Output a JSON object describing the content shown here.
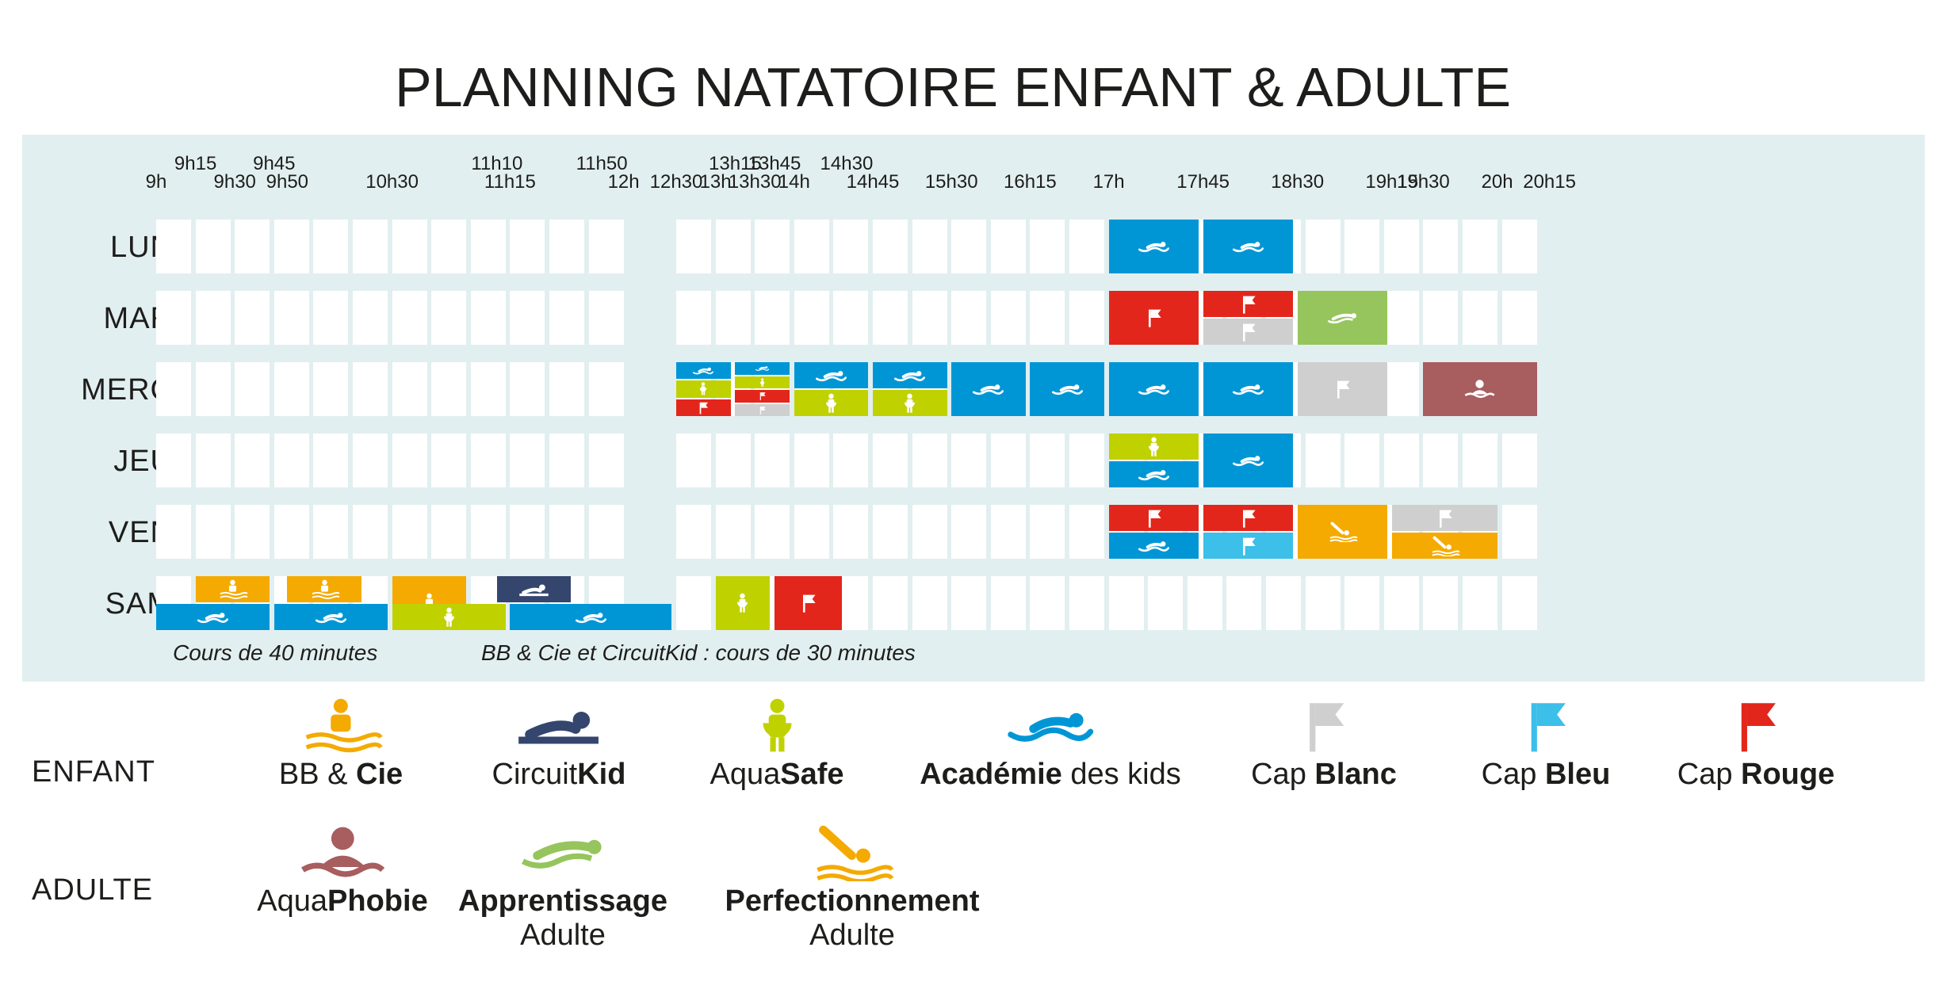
{
  "title": {
    "light": "PLANNING ",
    "bold": "NATATOIRE ENFANT & ADULTE"
  },
  "colors": {
    "bb": "#f4aa00",
    "circuit": "#34466e",
    "aquasafe": "#c0d100",
    "academie": "#0096d6",
    "blanc": "#cfcfcf",
    "bleu": "#3cbfe9",
    "rouge": "#e3261b",
    "phobie": "#a85d5f",
    "apprentissage": "#95c55c",
    "perfectionnement": "#f4aa00",
    "panel": "#e2eff0"
  },
  "time_labels": {
    "top": [
      "9h15",
      "9h45",
      "11h10",
      "11h50",
      "13h15",
      "13h45",
      "14h30"
    ],
    "bottom": [
      "9h",
      "9h30",
      "9h50",
      "10h30",
      "11h15",
      "12h",
      "12h30",
      "13h",
      "13h30",
      "14h",
      "14h45",
      "15h30",
      "16h15",
      "17h",
      "17h45",
      "18h30",
      "19h15",
      "19h30",
      "20h",
      "20h15"
    ]
  },
  "days": [
    "LUN",
    "MAR",
    "MERC",
    "JEU",
    "VEN",
    "SAM"
  ],
  "schedule": [
    {
      "day": "LUN",
      "course": "academie",
      "start": "17h",
      "end": "17h45"
    },
    {
      "day": "LUN",
      "course": "academie",
      "start": "17h45",
      "end": "18h30"
    },
    {
      "day": "MAR",
      "course": "rouge",
      "start": "17h",
      "end": "17h45"
    },
    {
      "day": "MAR",
      "course": "rouge",
      "start": "17h45",
      "end": "18h30",
      "track": "top"
    },
    {
      "day": "MAR",
      "course": "blanc",
      "start": "17h45",
      "end": "18h30",
      "track": "bottom"
    },
    {
      "day": "MAR",
      "course": "apprentissage",
      "start": "18h30",
      "end": "19h15"
    },
    {
      "day": "MERC",
      "course": "academie",
      "start": "12h30",
      "end": "13h15",
      "track": "1/3"
    },
    {
      "day": "MERC",
      "course": "aquasafe",
      "start": "12h30",
      "end": "13h15",
      "track": "2/3"
    },
    {
      "day": "MERC",
      "course": "rouge",
      "start": "12h30",
      "end": "13h15",
      "track": "3/3"
    },
    {
      "day": "MERC",
      "course": "academie",
      "start": "13h15",
      "end": "14h",
      "track": "1/4"
    },
    {
      "day": "MERC",
      "course": "aquasafe",
      "start": "13h15",
      "end": "14h",
      "track": "2/4"
    },
    {
      "day": "MERC",
      "course": "rouge",
      "start": "13h15",
      "end": "14h",
      "track": "3/4"
    },
    {
      "day": "MERC",
      "course": "blanc",
      "start": "13h15",
      "end": "14h",
      "track": "4/4"
    },
    {
      "day": "MERC",
      "course": "academie",
      "start": "14h",
      "end": "14h45",
      "track": "top"
    },
    {
      "day": "MERC",
      "course": "aquasafe",
      "start": "14h",
      "end": "14h45",
      "track": "bottom"
    },
    {
      "day": "MERC",
      "course": "academie",
      "start": "14h45",
      "end": "15h30",
      "track": "top"
    },
    {
      "day": "MERC",
      "course": "aquasafe",
      "start": "14h45",
      "end": "15h30",
      "track": "bottom"
    },
    {
      "day": "MERC",
      "course": "academie",
      "start": "15h30",
      "end": "16h15"
    },
    {
      "day": "MERC",
      "course": "academie",
      "start": "16h15",
      "end": "17h"
    },
    {
      "day": "MERC",
      "course": "academie",
      "start": "17h",
      "end": "17h45"
    },
    {
      "day": "MERC",
      "course": "academie",
      "start": "17h45",
      "end": "18h30"
    },
    {
      "day": "MERC",
      "course": "blanc",
      "start": "18h30",
      "end": "19h15"
    },
    {
      "day": "MERC",
      "course": "phobie",
      "start": "19h30",
      "end": "20h15"
    },
    {
      "day": "JEU",
      "course": "aquasafe",
      "start": "17h",
      "end": "17h45",
      "track": "top"
    },
    {
      "day": "JEU",
      "course": "academie",
      "start": "17h",
      "end": "17h45",
      "track": "bottom"
    },
    {
      "day": "JEU",
      "course": "academie",
      "start": "17h45",
      "end": "18h30"
    },
    {
      "day": "VEN",
      "course": "rouge",
      "start": "17h",
      "end": "17h45",
      "track": "top"
    },
    {
      "day": "VEN",
      "course": "academie",
      "start": "17h",
      "end": "17h45",
      "track": "bottom"
    },
    {
      "day": "VEN",
      "course": "rouge",
      "start": "17h45",
      "end": "18h30",
      "track": "top"
    },
    {
      "day": "VEN",
      "course": "bleu",
      "start": "17h45",
      "end": "18h30",
      "track": "bottom"
    },
    {
      "day": "VEN",
      "course": "perfectionnement",
      "start": "18h30",
      "end": "19h15"
    },
    {
      "day": "VEN",
      "course": "blanc",
      "start": "19h15",
      "end": "20h",
      "track": "top"
    },
    {
      "day": "VEN",
      "course": "perfectionnement",
      "start": "19h15",
      "end": "20h",
      "track": "bottom"
    },
    {
      "day": "SAM",
      "course": "bb",
      "start": "9h15",
      "end": "9h45",
      "track": "top"
    },
    {
      "day": "SAM",
      "course": "bb",
      "start": "9h50",
      "end": "10h20",
      "track": "top"
    },
    {
      "day": "SAM",
      "course": "bb",
      "start": "10h30",
      "end": "11h"
    },
    {
      "day": "SAM",
      "course": "circuit",
      "start": "11h10",
      "end": "11h40",
      "track": "top"
    },
    {
      "day": "SAM",
      "course": "academie",
      "start": "9h",
      "end": "9h45",
      "track": "bottom"
    },
    {
      "day": "SAM",
      "course": "academie",
      "start": "9h45",
      "end": "10h30",
      "track": "bottom"
    },
    {
      "day": "SAM",
      "course": "aquasafe",
      "start": "10h30",
      "end": "11h15",
      "track": "bottom"
    },
    {
      "day": "SAM",
      "course": "academie",
      "start": "11h15",
      "end": "12h",
      "track": "bottom"
    },
    {
      "day": "SAM",
      "course": "aquasafe",
      "start": "13h",
      "end": "13h45"
    },
    {
      "day": "SAM",
      "course": "rouge",
      "start": "13h45",
      "end": "14h30"
    }
  ],
  "notes": {
    "n1": "Cours de 40 minutes",
    "n2": "BB & Cie et CircuitKid : cours de 30 minutes"
  },
  "legend": {
    "enfant_label": "ENFANT",
    "adulte_label": "ADULTE",
    "enfant": [
      {
        "key": "bb",
        "light": "BB & ",
        "bold": "Cie",
        "icon": "baby-swimmer-icon"
      },
      {
        "key": "circuit",
        "light": "Circuit",
        "bold": "Kid",
        "icon": "kid-swimmer-icon"
      },
      {
        "key": "aquasafe",
        "light": "Aqua",
        "bold": "Safe",
        "icon": "float-ring-swimmer-icon"
      },
      {
        "key": "academie",
        "bold": "Académie",
        "light2": " des kids",
        "icon": "swimmer-icon"
      },
      {
        "key": "blanc",
        "light": "Cap ",
        "bold": "Blanc",
        "icon": "white-flag-icon"
      },
      {
        "key": "bleu",
        "light": "Cap ",
        "bold": "Bleu",
        "icon": "blue-flag-icon"
      },
      {
        "key": "rouge",
        "light": "Cap ",
        "bold": "Rouge",
        "icon": "red-flag-icon"
      }
    ],
    "adulte": [
      {
        "key": "phobie",
        "light": "Aqua",
        "bold": "Phobie",
        "icon": "head-above-water-icon"
      },
      {
        "key": "apprentissage",
        "bold": "Apprentissage",
        "line2": "Adulte",
        "icon": "adult-swimmer-icon"
      },
      {
        "key": "perfectionnement",
        "bold": "Perfectionnement",
        "line2": "Adulte",
        "icon": "diver-icon"
      }
    ]
  }
}
